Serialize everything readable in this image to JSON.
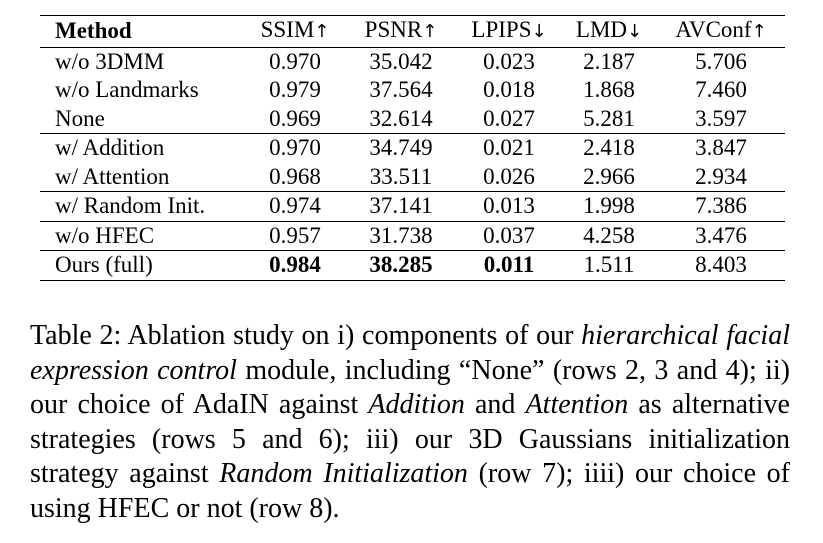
{
  "table": {
    "columns": [
      {
        "label": "Method",
        "arrow": ""
      },
      {
        "label": "SSIM",
        "arrow": "↑"
      },
      {
        "label": "PSNR",
        "arrow": "↑"
      },
      {
        "label": "LPIPS",
        "arrow": "↓"
      },
      {
        "label": "LMD",
        "arrow": "↓"
      },
      {
        "label": "AVConf",
        "arrow": "↑"
      }
    ],
    "groups": [
      [
        {
          "method": "w/o 3DMM",
          "values": [
            "0.970",
            "35.042",
            "0.023",
            "2.187",
            "5.706"
          ]
        },
        {
          "method": "w/o Landmarks",
          "values": [
            "0.979",
            "37.564",
            "0.018",
            "1.868",
            "7.460"
          ]
        },
        {
          "method": "None",
          "values": [
            "0.969",
            "32.614",
            "0.027",
            "5.281",
            "3.597"
          ]
        }
      ],
      [
        {
          "method": "w/ Addition",
          "values": [
            "0.970",
            "34.749",
            "0.021",
            "2.418",
            "3.847"
          ]
        },
        {
          "method": "w/ Attention",
          "values": [
            "0.968",
            "33.511",
            "0.026",
            "2.966",
            "2.934"
          ]
        }
      ],
      [
        {
          "method": "w/ Random Init.",
          "values": [
            "0.974",
            "37.141",
            "0.013",
            "1.998",
            "7.386"
          ]
        }
      ],
      [
        {
          "method": "w/o HFEC",
          "values": [
            "0.957",
            "31.738",
            "0.037",
            "4.258",
            "3.476"
          ]
        }
      ],
      [
        {
          "method": "Ours (full)",
          "values": [
            "0.984",
            "38.285",
            "0.011",
            "1.511",
            "8.403"
          ],
          "bold": [
            true,
            true,
            true,
            false,
            false
          ]
        }
      ]
    ]
  },
  "caption": {
    "segments": [
      {
        "text": "Table 2: Ablation study on i) components of our ",
        "italic": false
      },
      {
        "text": "hierarchical facial expression control",
        "italic": true
      },
      {
        "text": " module, including “None” (rows 2, 3 and 4); ii) our choice of AdaIN against ",
        "italic": false
      },
      {
        "text": "Addition",
        "italic": true
      },
      {
        "text": " and ",
        "italic": false
      },
      {
        "text": "Attention",
        "italic": true
      },
      {
        "text": " as alternative strategies (rows 5 and 6); iii) our 3D Gaussians initialization strategy against ",
        "italic": false
      },
      {
        "text": "Random Initialization",
        "italic": true
      },
      {
        "text": " (row 7); iiii) our choice of using HFEC or not (row 8).",
        "italic": false
      }
    ]
  }
}
